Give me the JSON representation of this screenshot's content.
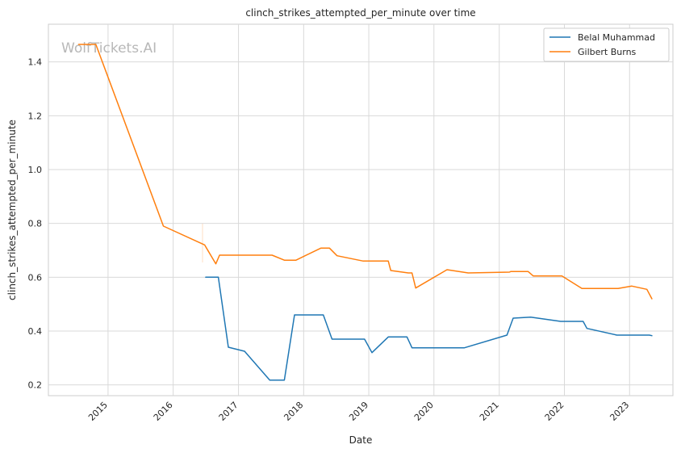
{
  "watermark": "WolfTickets.AI",
  "chart_data": {
    "type": "line",
    "title": "clinch_strikes_attempted_per_minute over time",
    "xlabel": "Date",
    "ylabel": "clinch_strikes_attempted_per_minute",
    "x_axis_type": "date",
    "xlim": [
      "2014-02-01",
      "2023-09-01"
    ],
    "ylim": [
      0.16,
      1.54
    ],
    "x_ticks": [
      "2015",
      "2016",
      "2017",
      "2018",
      "2019",
      "2020",
      "2021",
      "2022",
      "2023"
    ],
    "y_ticks": [
      0.2,
      0.4,
      0.6,
      0.8,
      1.0,
      1.2,
      1.4
    ],
    "grid": true,
    "legend_position": "top-right",
    "colors": {
      "Belal Muhammad": "#1f77b4",
      "Gilbert Burns": "#ff7f0e"
    },
    "series": [
      {
        "name": "Belal Muhammad",
        "color": "#1f77b4",
        "points": [
          [
            "2016-07-01",
            0.6
          ],
          [
            "2016-09-10",
            0.6
          ],
          [
            "2016-11-05",
            0.34
          ],
          [
            "2017-02-04",
            0.325
          ],
          [
            "2017-06-25",
            0.218
          ],
          [
            "2017-09-15",
            0.218
          ],
          [
            "2017-11-11",
            0.46
          ],
          [
            "2018-04-21",
            0.46
          ],
          [
            "2018-06-09",
            0.37
          ],
          [
            "2018-12-08",
            0.37
          ],
          [
            "2019-01-19",
            0.32
          ],
          [
            "2019-04-20",
            0.378
          ],
          [
            "2019-08-03",
            0.378
          ],
          [
            "2019-08-31",
            0.338
          ],
          [
            "2020-06-20",
            0.338
          ],
          [
            "2021-02-13",
            0.385
          ],
          [
            "2021-03-20",
            0.448
          ],
          [
            "2021-06-26",
            0.452
          ],
          [
            "2021-12-11",
            0.436
          ],
          [
            "2022-04-16",
            0.436
          ],
          [
            "2022-05-07",
            0.41
          ],
          [
            "2022-10-22",
            0.385
          ],
          [
            "2023-04-22",
            0.385
          ],
          [
            "2023-05-06",
            0.383
          ]
        ]
      },
      {
        "name": "Gilbert Burns",
        "color": "#ff7f0e",
        "points": [
          [
            "2014-07-20",
            1.465
          ],
          [
            "2014-10-25",
            1.465
          ],
          [
            "2015-11-07",
            0.79
          ],
          [
            "2016-06-25",
            0.72
          ],
          [
            "2016-08-27",
            0.65
          ],
          [
            "2016-09-17",
            0.682
          ],
          [
            "2017-07-08",
            0.682
          ],
          [
            "2017-09-16",
            0.663
          ],
          [
            "2017-11-18",
            0.663
          ],
          [
            "2018-04-07",
            0.708
          ],
          [
            "2018-05-26",
            0.708
          ],
          [
            "2018-07-07",
            0.68
          ],
          [
            "2018-12-01",
            0.66
          ],
          [
            "2019-04-20",
            0.66
          ],
          [
            "2019-05-04",
            0.625
          ],
          [
            "2019-08-10",
            0.616
          ],
          [
            "2019-08-31",
            0.616
          ],
          [
            "2019-09-21",
            0.56
          ],
          [
            "2020-03-14",
            0.628
          ],
          [
            "2020-07-11",
            0.616
          ],
          [
            "2021-02-27",
            0.619
          ],
          [
            "2021-03-06",
            0.621
          ],
          [
            "2021-06-12",
            0.621
          ],
          [
            "2021-07-10",
            0.605
          ],
          [
            "2021-12-18",
            0.605
          ],
          [
            "2022-04-09",
            0.558
          ],
          [
            "2022-10-29",
            0.558
          ],
          [
            "2023-01-14",
            0.567
          ],
          [
            "2023-04-08",
            0.555
          ],
          [
            "2023-05-06",
            0.52
          ]
        ]
      }
    ]
  }
}
